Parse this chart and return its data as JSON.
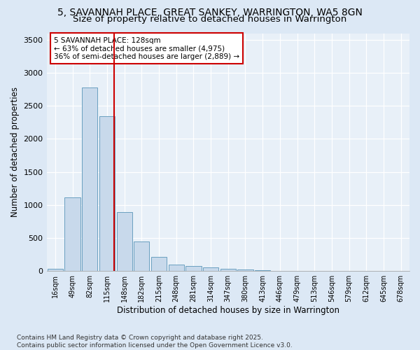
{
  "title_line1": "5, SAVANNAH PLACE, GREAT SANKEY, WARRINGTON, WA5 8GN",
  "title_line2": "Size of property relative to detached houses in Warrington",
  "xlabel": "Distribution of detached houses by size in Warrington",
  "ylabel": "Number of detached properties",
  "bar_labels": [
    "16sqm",
    "49sqm",
    "82sqm",
    "115sqm",
    "148sqm",
    "182sqm",
    "215sqm",
    "248sqm",
    "281sqm",
    "314sqm",
    "347sqm",
    "380sqm",
    "413sqm",
    "446sqm",
    "479sqm",
    "513sqm",
    "546sqm",
    "579sqm",
    "612sqm",
    "645sqm",
    "678sqm"
  ],
  "bar_values": [
    30,
    1110,
    2780,
    2340,
    890,
    450,
    210,
    100,
    80,
    55,
    30,
    20,
    10,
    5,
    2,
    0,
    0,
    0,
    0,
    0,
    0
  ],
  "bar_color": "#c8d9eb",
  "bar_edge_color": "#6a9fc0",
  "vline_color": "#cc0000",
  "annotation_text": "5 SAVANNAH PLACE: 128sqm\n← 63% of detached houses are smaller (4,975)\n36% of semi-detached houses are larger (2,889) →",
  "annotation_box_color": "#ffffff",
  "annotation_box_edge": "#cc0000",
  "ylim": [
    0,
    3600
  ],
  "yticks": [
    0,
    500,
    1000,
    1500,
    2000,
    2500,
    3000,
    3500
  ],
  "footnote": "Contains HM Land Registry data © Crown copyright and database right 2025.\nContains public sector information licensed under the Open Government Licence v3.0.",
  "bg_color": "#dce8f5",
  "plot_bg_color": "#e8f0f8",
  "title_fontsize": 10,
  "subtitle_fontsize": 9.5,
  "axis_label_fontsize": 8.5,
  "tick_fontsize": 7,
  "annotation_fontsize": 7.5,
  "footnote_fontsize": 6.5
}
